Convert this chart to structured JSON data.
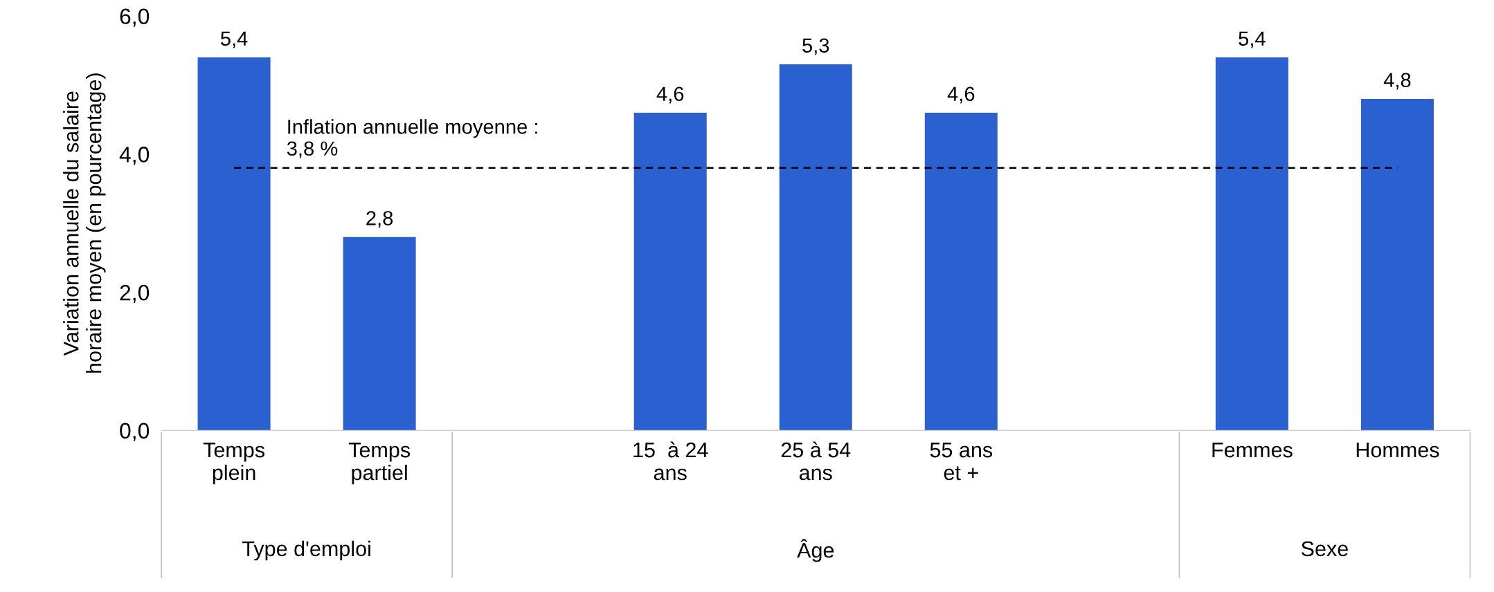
{
  "chart_data": {
    "type": "bar",
    "ylabel": "Variation annuelle du salaire\nhoraire moyen (en pourcentage)",
    "categories": [
      "Temps\nplein",
      "Temps\npartiel",
      null,
      "15  à 24\nans",
      "25 à 54\nans",
      "55 ans\net +",
      null,
      "Femmes",
      "Hommes"
    ],
    "values": [
      5.4,
      2.8,
      null,
      4.6,
      5.3,
      4.6,
      null,
      5.4,
      4.8
    ],
    "value_labels": [
      "5,4",
      "2,8",
      null,
      "4,6",
      "5,3",
      "4,6",
      null,
      "5,4",
      "4,8"
    ],
    "color": "#2b60d0",
    "ylim": [
      0,
      6
    ],
    "yticks": [
      {
        "value": 0,
        "label": "0,0"
      },
      {
        "value": 2,
        "label": "2,0"
      },
      {
        "value": 4,
        "label": "4,0"
      },
      {
        "value": 6,
        "label": "6,0"
      }
    ],
    "ref_lines": [
      {
        "axis": "y",
        "value": 3.8,
        "label": "Inflation annuelle moyenne :\n3,8 %",
        "color": "#000000",
        "line_style": "dashed"
      }
    ],
    "annotations": [
      "Type d'emploi",
      "Âge",
      "Sexe"
    ],
    "grid": false,
    "legend": false
  }
}
